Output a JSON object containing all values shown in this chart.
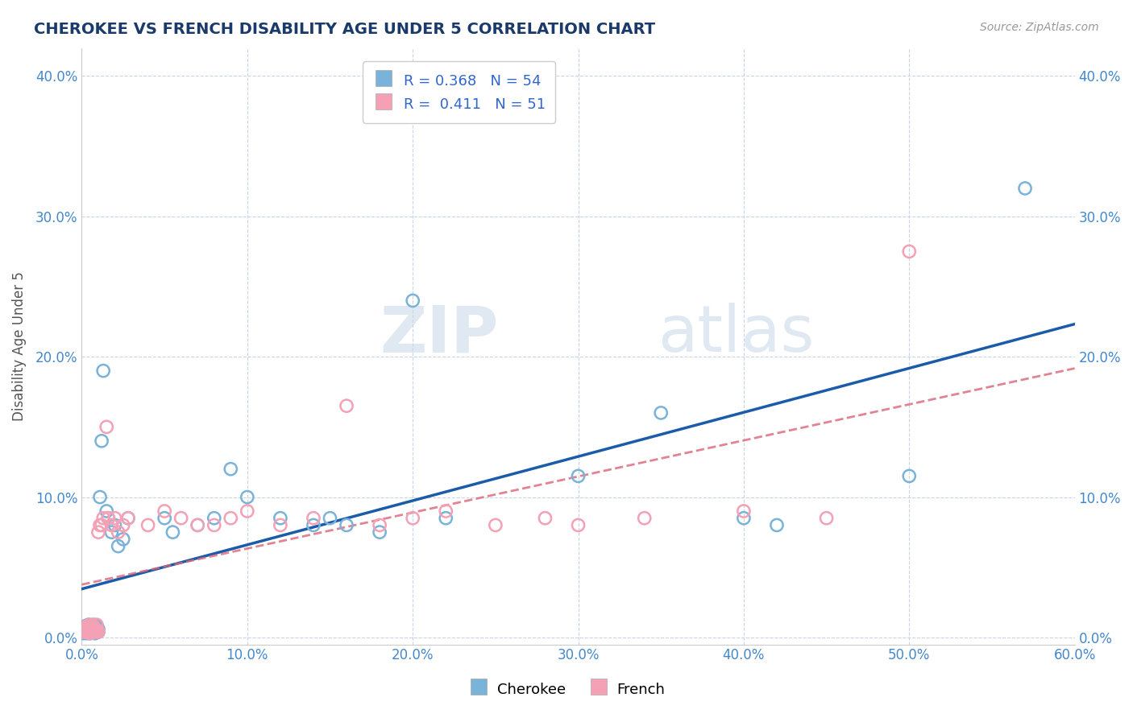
{
  "title": "CHEROKEE VS FRENCH DISABILITY AGE UNDER 5 CORRELATION CHART",
  "source": "Source: ZipAtlas.com",
  "xlim": [
    0.0,
    0.6
  ],
  "ylim": [
    -0.005,
    0.42
  ],
  "cherokee_R": 0.368,
  "cherokee_N": 54,
  "french_R": 0.411,
  "french_N": 51,
  "cherokee_color": "#7ab3d9",
  "french_color": "#f4a0b5",
  "cherokee_line_color": "#1a5ca8",
  "french_line_color": "#d9667a",
  "legend_cherokee_label": "Cherokee",
  "legend_french_label": "French",
  "watermark_zip": "ZIP",
  "watermark_atlas": "atlas",
  "background_color": "#ffffff",
  "grid_color": "#c8d4e8",
  "cherokee_x": [
    0.001,
    0.001,
    0.002,
    0.002,
    0.002,
    0.003,
    0.003,
    0.003,
    0.004,
    0.004,
    0.004,
    0.005,
    0.005,
    0.005,
    0.006,
    0.006,
    0.006,
    0.007,
    0.007,
    0.008,
    0.008,
    0.009,
    0.009,
    0.01,
    0.01,
    0.011,
    0.012,
    0.013,
    0.015,
    0.016,
    0.018,
    0.02,
    0.022,
    0.025,
    0.028,
    0.05,
    0.055,
    0.07,
    0.08,
    0.09,
    0.1,
    0.12,
    0.14,
    0.15,
    0.16,
    0.18,
    0.2,
    0.22,
    0.3,
    0.35,
    0.4,
    0.42,
    0.5,
    0.57
  ],
  "cherokee_y": [
    0.005,
    0.003,
    0.006,
    0.004,
    0.008,
    0.003,
    0.005,
    0.007,
    0.004,
    0.006,
    0.009,
    0.005,
    0.007,
    0.003,
    0.008,
    0.004,
    0.006,
    0.005,
    0.009,
    0.003,
    0.007,
    0.005,
    0.008,
    0.006,
    0.004,
    0.1,
    0.14,
    0.19,
    0.09,
    0.085,
    0.075,
    0.08,
    0.065,
    0.07,
    0.085,
    0.085,
    0.075,
    0.08,
    0.085,
    0.12,
    0.1,
    0.085,
    0.08,
    0.085,
    0.08,
    0.075,
    0.24,
    0.085,
    0.115,
    0.16,
    0.085,
    0.08,
    0.115,
    0.32
  ],
  "french_x": [
    0.001,
    0.001,
    0.002,
    0.002,
    0.003,
    0.003,
    0.004,
    0.004,
    0.005,
    0.005,
    0.005,
    0.006,
    0.006,
    0.007,
    0.007,
    0.008,
    0.008,
    0.009,
    0.009,
    0.01,
    0.01,
    0.011,
    0.012,
    0.013,
    0.015,
    0.016,
    0.018,
    0.02,
    0.022,
    0.025,
    0.028,
    0.04,
    0.05,
    0.06,
    0.07,
    0.08,
    0.09,
    0.1,
    0.12,
    0.14,
    0.16,
    0.18,
    0.2,
    0.22,
    0.25,
    0.28,
    0.3,
    0.34,
    0.4,
    0.45,
    0.5
  ],
  "french_y": [
    0.006,
    0.004,
    0.007,
    0.005,
    0.004,
    0.008,
    0.005,
    0.007,
    0.003,
    0.006,
    0.009,
    0.004,
    0.007,
    0.005,
    0.008,
    0.004,
    0.006,
    0.005,
    0.009,
    0.004,
    0.075,
    0.08,
    0.08,
    0.085,
    0.15,
    0.085,
    0.08,
    0.085,
    0.075,
    0.08,
    0.085,
    0.08,
    0.09,
    0.085,
    0.08,
    0.08,
    0.085,
    0.09,
    0.08,
    0.085,
    0.165,
    0.08,
    0.085,
    0.09,
    0.08,
    0.085,
    0.08,
    0.085,
    0.09,
    0.085,
    0.275
  ]
}
